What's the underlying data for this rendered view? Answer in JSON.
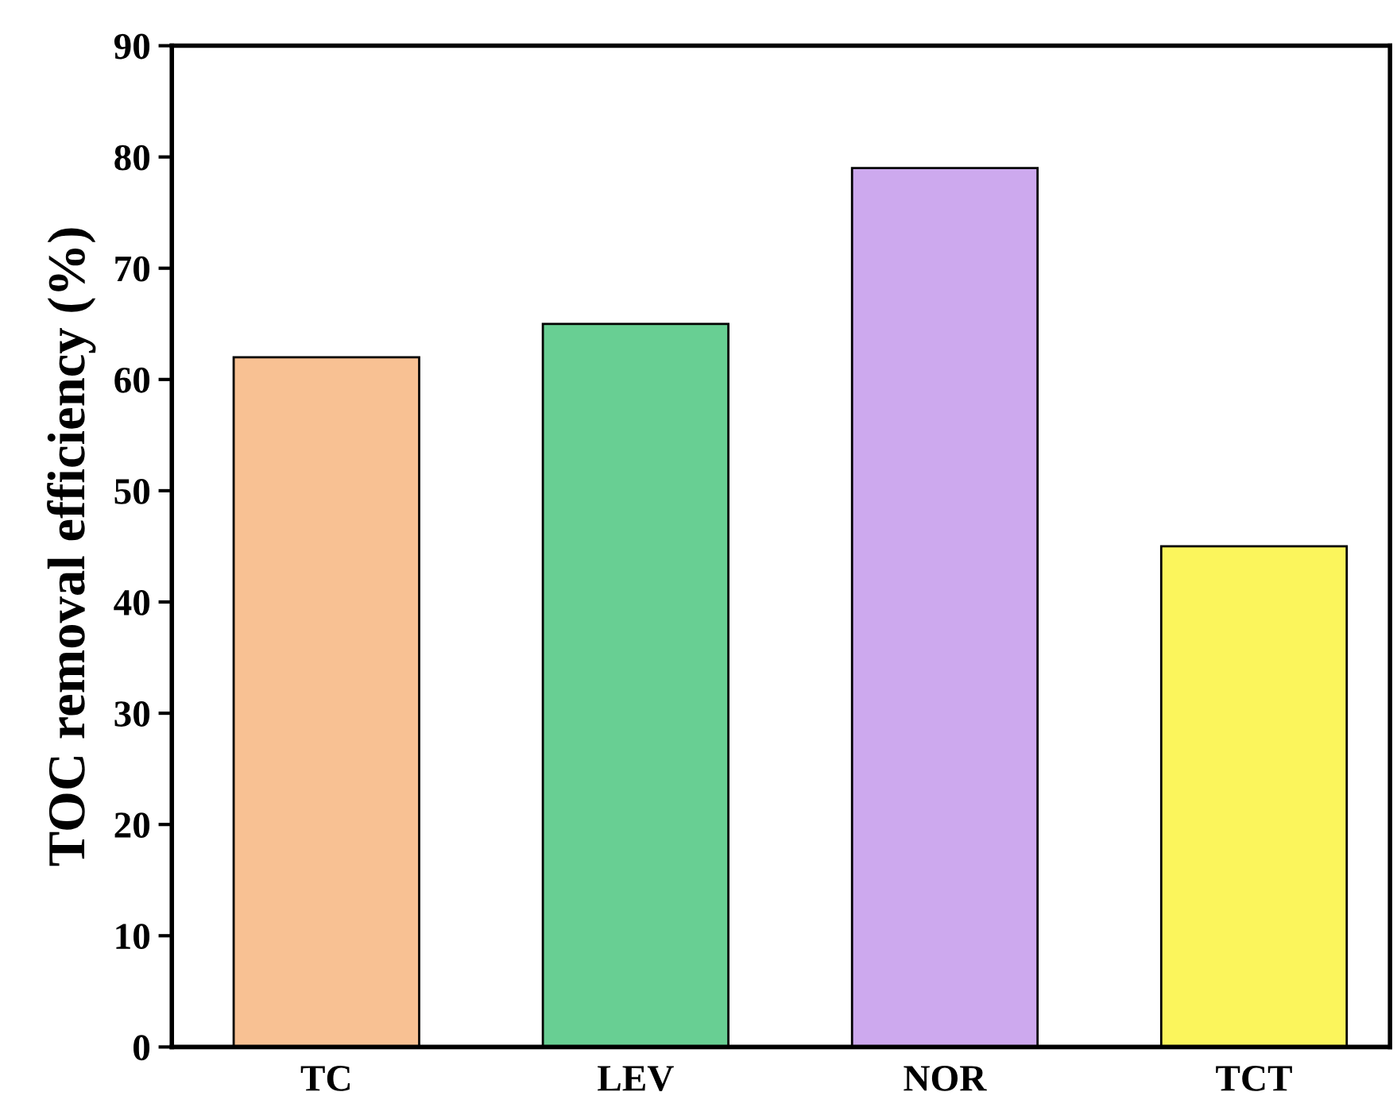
{
  "chart_data": {
    "type": "bar",
    "ylabel": "TOC removal efficiency (%)",
    "categories": [
      "TC",
      "LEV",
      "NOR",
      "TCT"
    ],
    "values": [
      62,
      65,
      79,
      45
    ],
    "colors": [
      "#f8c193",
      "#68cf93",
      "#cda9ee",
      "#fbf55c"
    ],
    "ylim": [
      0,
      90
    ],
    "yticks": [
      0,
      10,
      20,
      30,
      40,
      50,
      60,
      70,
      80,
      90
    ],
    "grid": false,
    "legend": false
  }
}
